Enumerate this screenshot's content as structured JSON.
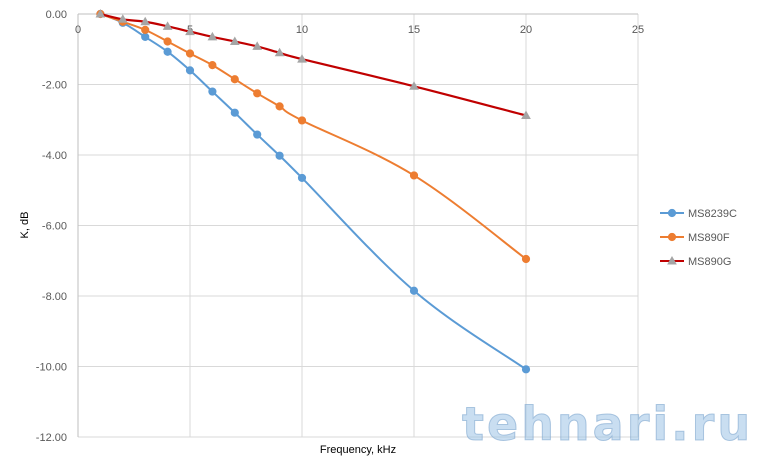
{
  "watermark": "tehnari.ru",
  "chart_data": {
    "type": "scatter",
    "xlabel": "Frequency, kHz",
    "ylabel": "K, dB",
    "xlim": [
      0,
      25
    ],
    "ylim": [
      -12,
      0
    ],
    "x_ticks": [
      "0",
      "5",
      "10",
      "15",
      "20",
      "25"
    ],
    "y_ticks": [
      "0.00",
      "-2.00",
      "-4.00",
      "-6.00",
      "-8.00",
      "-10.00",
      "-12.00"
    ],
    "x_tick_values": [
      0,
      5,
      10,
      15,
      20,
      25
    ],
    "y_tick_values": [
      0,
      -2,
      -4,
      -6,
      -8,
      -10,
      -12
    ],
    "grid": "horizontal and vertical",
    "legend_position": "right",
    "series": [
      {
        "name": "MS8239C",
        "color": "#5b9bd5",
        "marker": "circle",
        "x": [
          1,
          2,
          3,
          4,
          5,
          6,
          7,
          8,
          9,
          10,
          15,
          20
        ],
        "y": [
          0,
          -0.25,
          -0.65,
          -1.07,
          -1.6,
          -2.2,
          -2.8,
          -3.42,
          -4.02,
          -4.65,
          -7.85,
          -10.08
        ]
      },
      {
        "name": "MS890F",
        "color": "#ed7d31",
        "marker": "circle",
        "x": [
          1,
          2,
          3,
          4,
          5,
          6,
          7,
          8,
          9,
          10,
          15,
          20
        ],
        "y": [
          0,
          -0.22,
          -0.45,
          -0.78,
          -1.12,
          -1.45,
          -1.85,
          -2.25,
          -2.62,
          -3.02,
          -4.58,
          -6.95
        ]
      },
      {
        "name": "MS890G",
        "color": "#c00000",
        "marker": "triangle",
        "x": [
          1,
          2,
          3,
          4,
          5,
          6,
          7,
          8,
          9,
          10,
          15,
          20
        ],
        "y": [
          0,
          -0.15,
          -0.22,
          -0.35,
          -0.5,
          -0.65,
          -0.78,
          -0.92,
          -1.1,
          -1.28,
          -2.05,
          -2.88
        ]
      }
    ]
  }
}
